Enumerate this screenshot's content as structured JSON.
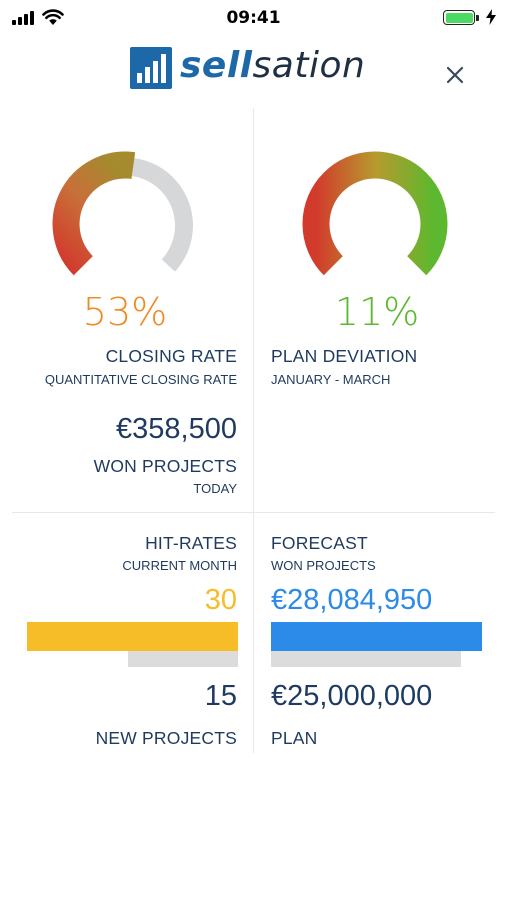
{
  "status_bar": {
    "time": "09:41"
  },
  "header": {
    "brand_part1": "sell",
    "brand_part2": "sation",
    "close_icon": "close-icon"
  },
  "colors": {
    "brand": "#1d68a8",
    "orange": "#f08a24",
    "green": "#5cb82e",
    "yellow": "#f7bd28",
    "blue": "#2c8be8",
    "gauge_track": "#d6d7d9"
  },
  "closing_rate": {
    "percent": "53%",
    "value": 0.53,
    "title": "CLOSING RATE",
    "subtitle": "QUANTITATIVE CLOSING RATE"
  },
  "won_projects": {
    "amount": "€358,500",
    "title": "WON PROJECTS",
    "subtitle": "TODAY"
  },
  "plan_deviation": {
    "percent": "11%",
    "value": 1.0,
    "title": "PLAN DEVIATION",
    "subtitle": "JANUARY - MARCH"
  },
  "hit_rates": {
    "title": "HIT-RATES",
    "subtitle": "CURRENT MONTH",
    "current": "30",
    "current_value": 30,
    "target_value": 15,
    "count": "15",
    "count_label": "NEW PROJECTS"
  },
  "forecast": {
    "title": "FORECAST",
    "subtitle": "WON PROJECTS",
    "amount": "€28,084,950",
    "plan_amount": "€25,000,000",
    "plan_label": "PLAN"
  }
}
